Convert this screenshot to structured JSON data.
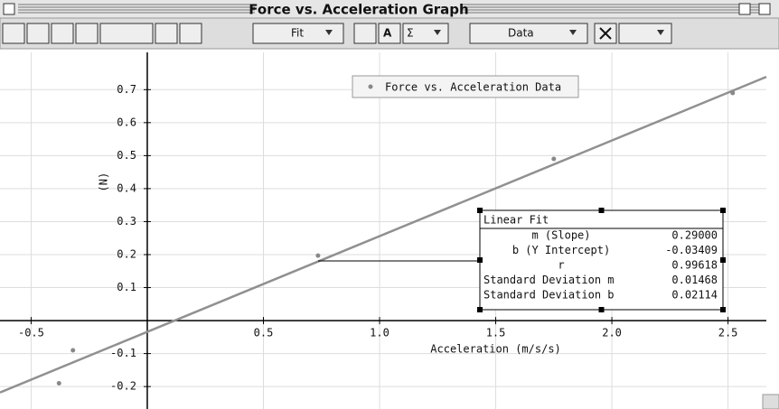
{
  "window": {
    "title": "Force vs. Acceleration Graph"
  },
  "toolbar": {
    "fit_menu": "Fit",
    "data_menu": "Data"
  },
  "chart_data": {
    "type": "scatter",
    "legend": "Force vs. Acceleration Data",
    "xlabel": "Acceleration (m/s/s)",
    "ylabel": "(N)",
    "series": [
      {
        "name": "Force vs. Acceleration Data",
        "color": "#888888",
        "x": [
          -0.32,
          -0.38,
          0.735,
          1.75,
          2.52
        ],
        "values": [
          -0.09,
          -0.19,
          0.197,
          0.49,
          0.69
        ]
      }
    ],
    "xlim": [
      -0.634,
      2.665
    ],
    "ylim": [
      -0.268,
      0.813
    ],
    "xticks": [
      -0.5,
      0.5,
      {
        "value": 1,
        "label": "1.0"
      },
      1.5,
      {
        "value": 2,
        "label": "2.0"
      },
      2.5
    ],
    "yticks": [
      0.7,
      0.6,
      0.5,
      0.4,
      0.3,
      0.2,
      0.1,
      -0.1,
      -0.2
    ],
    "grid": true,
    "fit": {
      "title": "Linear Fit",
      "color": "#909090",
      "rows": [
        {
          "name": "m (Slope)",
          "value": 0.29,
          "label": "0.29000"
        },
        {
          "name": "b (Y Intercept)",
          "value": -0.03409,
          "label": "-0.03409"
        },
        {
          "name": "r",
          "value": 0.99618,
          "label": "0.99618"
        },
        {
          "name": "Standard Deviation  m",
          "value": 0.01468,
          "label": "0.01468"
        },
        {
          "name": "Standard Deviation  b",
          "value": 0.02114,
          "label": "0.02114"
        }
      ]
    }
  }
}
